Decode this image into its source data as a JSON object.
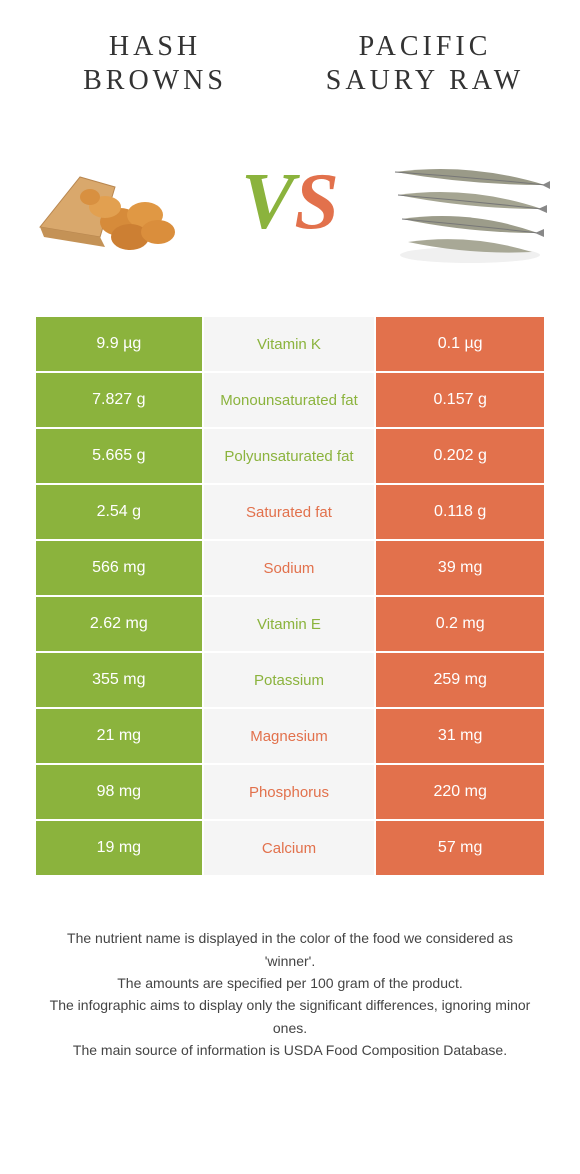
{
  "header": {
    "left_title": "HASH BROWNS",
    "right_title": "PACIFIC SAURY RAW"
  },
  "vs": {
    "v": "V",
    "s": "S"
  },
  "colors": {
    "green": "#8bb33d",
    "orange": "#e2714c",
    "mid_bg": "#f5f5f5"
  },
  "rows": [
    {
      "left": "9.9 µg",
      "label": "Vitamin K",
      "right": "0.1 µg",
      "winner": "left"
    },
    {
      "left": "7.827 g",
      "label": "Monounsaturated fat",
      "right": "0.157 g",
      "winner": "left"
    },
    {
      "left": "5.665 g",
      "label": "Polyunsaturated fat",
      "right": "0.202 g",
      "winner": "left"
    },
    {
      "left": "2.54 g",
      "label": "Saturated fat",
      "right": "0.118 g",
      "winner": "right"
    },
    {
      "left": "566 mg",
      "label": "Sodium",
      "right": "39 mg",
      "winner": "right"
    },
    {
      "left": "2.62 mg",
      "label": "Vitamin E",
      "right": "0.2 mg",
      "winner": "left"
    },
    {
      "left": "355 mg",
      "label": "Potassium",
      "right": "259 mg",
      "winner": "left"
    },
    {
      "left": "21 mg",
      "label": "Magnesium",
      "right": "31 mg",
      "winner": "right"
    },
    {
      "left": "98 mg",
      "label": "Phosphorus",
      "right": "220 mg",
      "winner": "right"
    },
    {
      "left": "19 mg",
      "label": "Calcium",
      "right": "57 mg",
      "winner": "right"
    }
  ],
  "footer": {
    "line1": "The nutrient name is displayed in the color of the food we considered as 'winner'.",
    "line2": "The amounts are specified per 100 gram of the product.",
    "line3": "The infographic aims to display only the significant differences, ignoring minor ones.",
    "line4": "The main source of information is USDA Food Composition Database."
  }
}
